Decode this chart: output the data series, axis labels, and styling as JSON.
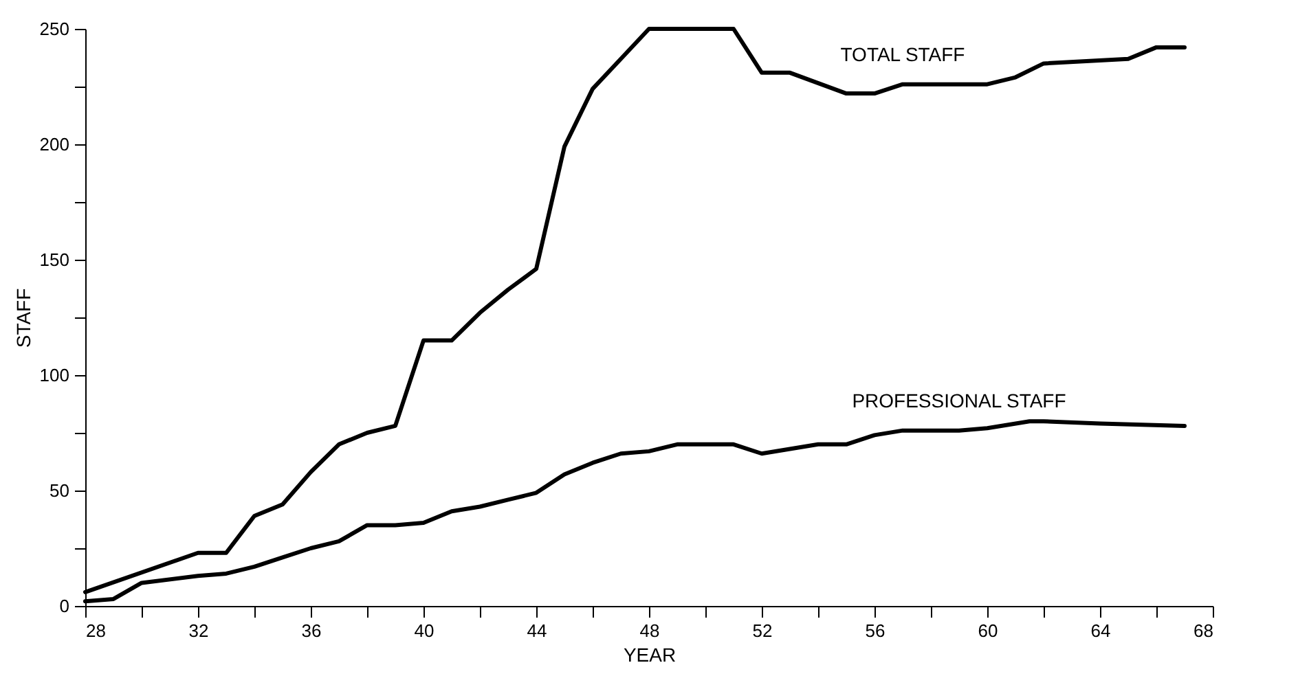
{
  "chart_data": {
    "type": "line",
    "xlabel": "YEAR",
    "ylabel": "STAFF",
    "xlim": [
      28,
      68
    ],
    "ylim": [
      0,
      250
    ],
    "xticks": [
      28,
      {
        "value": 30,
        "label": null
      },
      32,
      {
        "value": 34,
        "label": null
      },
      36,
      {
        "value": 38,
        "label": null
      },
      40,
      {
        "value": 42,
        "label": null
      },
      44,
      {
        "value": 46,
        "label": null
      },
      48,
      {
        "value": 50,
        "label": null
      },
      52,
      {
        "value": 54,
        "label": null
      },
      56,
      {
        "value": 58,
        "label": null
      },
      60,
      {
        "value": 62,
        "label": null
      },
      64,
      {
        "value": 66,
        "label": null
      },
      68
    ],
    "yticks": [
      0,
      {
        "value": 25,
        "label": null
      },
      50,
      {
        "value": 75,
        "label": null
      },
      100,
      {
        "value": 125,
        "label": null
      },
      150,
      {
        "value": 175,
        "label": null
      },
      200,
      {
        "value": 225,
        "label": null
      },
      250
    ],
    "grid": false,
    "legend": false,
    "marker": "none",
    "line_style": "solid",
    "series": [
      {
        "name": "TOTAL STAFF",
        "color": "#000000",
        "x": [
          28,
          32,
          33,
          34,
          35,
          36,
          37,
          38,
          39,
          40,
          41,
          42,
          43,
          44,
          45,
          46,
          47,
          48,
          51,
          52,
          53,
          55,
          56,
          57,
          60,
          61,
          62,
          65,
          66,
          67
        ],
        "values": [
          6,
          23,
          23,
          39,
          44,
          58,
          70,
          75,
          78,
          115,
          115,
          127,
          137,
          146,
          199,
          224,
          237,
          250,
          250,
          231,
          231,
          222,
          222,
          226,
          226,
          229,
          235,
          237,
          242,
          242
        ]
      },
      {
        "name": "PROFESSIONAL STAFF",
        "color": "#000000",
        "x": [
          28,
          29,
          30,
          32,
          33,
          34,
          35,
          36,
          37,
          38,
          39,
          40,
          41,
          42,
          43,
          44,
          45,
          46,
          47,
          48,
          49,
          51,
          52,
          53,
          54,
          55,
          56,
          57,
          59,
          60,
          61.5,
          62,
          64,
          67
        ],
        "values": [
          2,
          3,
          10,
          13,
          14,
          17,
          21,
          25,
          28,
          35,
          35,
          36,
          41,
          43,
          46,
          49,
          57,
          62,
          66,
          67,
          70,
          70,
          66,
          68,
          70,
          70,
          74,
          76,
          76,
          77,
          80,
          80,
          79,
          78
        ]
      }
    ]
  }
}
